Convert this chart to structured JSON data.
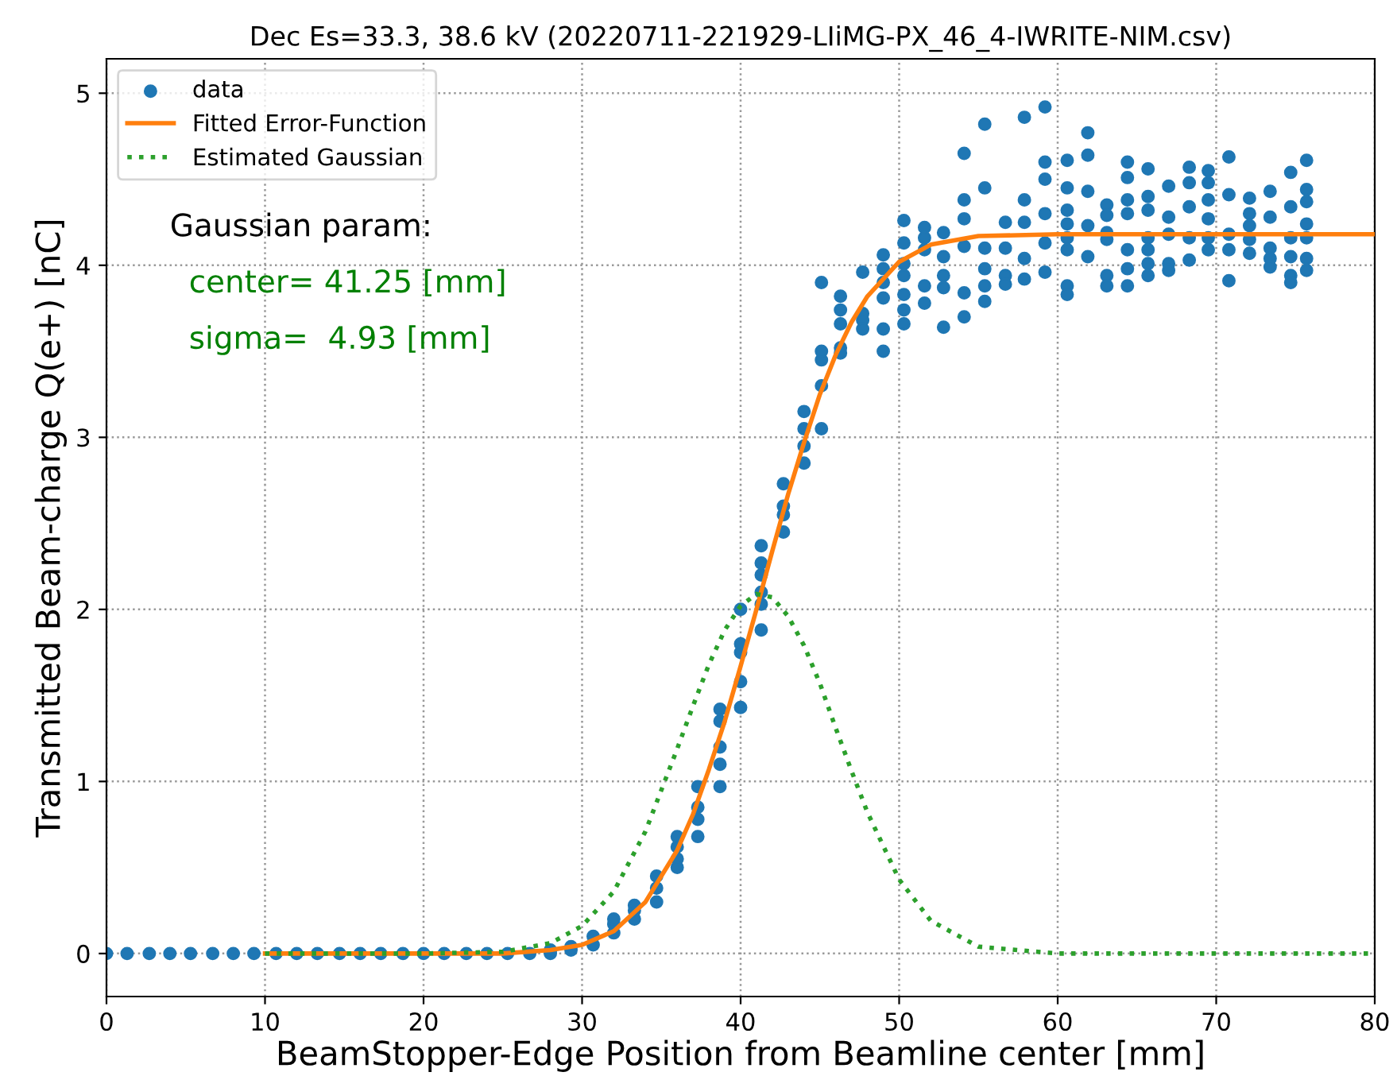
{
  "chart_data": {
    "type": "scatter",
    "title": "Dec Es=33.3, 38.6 kV (20220711-221929-LIiMG-PX_46_4-IWRITE-NIM.csv)",
    "xlabel": "BeamStopper-Edge Position from Beamline center [mm]",
    "ylabel": "Transmitted Beam-charge Q(e+) [nC]",
    "annotations": [
      "Gaussian param:",
      "center= 41.25 [mm]",
      "sigma=  4.93 [mm]"
    ],
    "xlim": [
      0,
      80
    ],
    "xticks": [
      0,
      10,
      20,
      30,
      40,
      50,
      60,
      70,
      80
    ],
    "ylim": [
      -0.25,
      5.2
    ],
    "yticks": [
      0,
      1,
      2,
      3,
      4,
      5
    ],
    "grid": true,
    "legend": "top left",
    "series": [
      {
        "name": "data",
        "type": "scatter",
        "marker": "circle",
        "color": "#1f77b4",
        "x": [
          0,
          1.3,
          2.7,
          4.0,
          5.3,
          6.7,
          8.0,
          9.3,
          10.7,
          12.0,
          13.3,
          14.7,
          16.0,
          17.3,
          18.7,
          20.0,
          21.3,
          22.7,
          24.0,
          25.3,
          26.7,
          28.0,
          28.0,
          29.3,
          29.3,
          30.7,
          30.7,
          32.0,
          32.0,
          32.0,
          33.3,
          33.3,
          33.3,
          34.7,
          34.7,
          34.7,
          36.0,
          36.0,
          36.0,
          36.0,
          37.3,
          37.3,
          37.3,
          37.3,
          38.7,
          38.7,
          38.7,
          38.7,
          38.7,
          40.0,
          40.0,
          40.0,
          40.0,
          40.0,
          41.3,
          41.3,
          41.3,
          41.3,
          41.3,
          41.3,
          42.7,
          42.7,
          42.7,
          42.7,
          44.0,
          44.0,
          44.0,
          44.0,
          45.1,
          45.1,
          45.1,
          45.1,
          45.1,
          46.3,
          46.3,
          46.3,
          46.3,
          46.3,
          47.7,
          47.7,
          47.7,
          47.7,
          49.0,
          49.0,
          49.0,
          49.0,
          49.0,
          49.0,
          50.3,
          50.3,
          50.3,
          50.3,
          50.3,
          50.3,
          50.3,
          51.6,
          51.6,
          51.6,
          51.6,
          51.6,
          52.8,
          52.8,
          52.8,
          52.8,
          52.8,
          54.1,
          54.1,
          54.1,
          54.1,
          54.1,
          54.1,
          55.4,
          55.4,
          55.4,
          55.4,
          55.4,
          55.4,
          56.7,
          56.7,
          56.7,
          56.7,
          57.9,
          57.9,
          57.9,
          57.9,
          57.9,
          59.2,
          59.2,
          59.2,
          59.2,
          59.2,
          59.2,
          60.6,
          60.6,
          60.6,
          60.6,
          60.6,
          60.6,
          60.6,
          60.6,
          61.9,
          61.9,
          61.9,
          61.9,
          61.9,
          63.1,
          63.1,
          63.1,
          63.1,
          63.1,
          63.1,
          64.4,
          64.4,
          64.4,
          64.4,
          64.4,
          64.4,
          64.4,
          65.7,
          65.7,
          65.7,
          65.7,
          65.7,
          65.7,
          65.7,
          67.0,
          67.0,
          67.0,
          67.0,
          67.0,
          68.3,
          68.3,
          68.3,
          68.3,
          68.3,
          69.5,
          69.5,
          69.5,
          69.5,
          69.5,
          69.5,
          70.8,
          70.8,
          70.8,
          70.8,
          70.8,
          72.1,
          72.1,
          72.1,
          72.1,
          72.1,
          73.4,
          73.4,
          73.4,
          73.4,
          73.4,
          74.7,
          74.7,
          74.7,
          74.7,
          74.7,
          74.7,
          75.7,
          75.7,
          75.7,
          75.7,
          75.7,
          75.7,
          75.7
        ],
        "values": [
          0,
          0,
          0,
          0,
          0,
          0,
          0,
          0,
          0,
          0,
          0,
          0,
          0,
          0,
          0,
          0,
          0,
          0,
          0,
          0,
          0,
          0,
          0.02,
          0.02,
          0.04,
          0.05,
          0.1,
          0.12,
          0.17,
          0.2,
          0.2,
          0.25,
          0.28,
          0.3,
          0.38,
          0.45,
          0.5,
          0.55,
          0.62,
          0.68,
          0.68,
          0.78,
          0.85,
          0.97,
          0.97,
          1.1,
          1.2,
          1.35,
          1.42,
          1.43,
          1.58,
          1.75,
          1.8,
          2.0,
          1.88,
          2.03,
          2.1,
          2.2,
          2.27,
          2.37,
          2.45,
          2.55,
          2.6,
          2.73,
          2.85,
          2.95,
          3.05,
          3.15,
          3.05,
          3.3,
          3.45,
          3.5,
          3.9,
          3.82,
          3.74,
          3.66,
          3.52,
          3.49,
          3.96,
          3.72,
          3.68,
          3.63,
          4.06,
          3.98,
          3.9,
          3.81,
          3.63,
          3.5,
          4.26,
          4.13,
          4.01,
          3.94,
          3.83,
          3.74,
          3.66,
          4.22,
          4.16,
          4.09,
          3.88,
          3.78,
          4.19,
          4.05,
          3.94,
          3.87,
          3.64,
          4.65,
          4.38,
          4.27,
          4.11,
          3.84,
          3.7,
          4.82,
          4.45,
          4.1,
          3.98,
          3.88,
          3.79,
          4.25,
          4.1,
          3.94,
          3.89,
          4.86,
          4.38,
          4.25,
          4.04,
          3.92,
          4.92,
          4.6,
          4.5,
          4.3,
          4.13,
          3.96,
          4.61,
          4.45,
          4.32,
          4.24,
          4.16,
          4.09,
          3.88,
          3.83,
          4.77,
          4.64,
          4.43,
          4.23,
          4.05,
          4.35,
          4.29,
          4.19,
          4.15,
          3.94,
          3.88,
          4.6,
          4.51,
          4.38,
          4.3,
          4.09,
          3.98,
          3.88,
          4.56,
          4.4,
          4.32,
          4.16,
          4.09,
          4.01,
          3.94,
          4.46,
          4.28,
          4.18,
          4.01,
          3.97,
          4.57,
          4.48,
          4.34,
          4.16,
          4.03,
          4.55,
          4.48,
          4.38,
          4.27,
          4.16,
          4.09,
          4.63,
          4.41,
          4.18,
          4.09,
          3.91,
          4.39,
          4.3,
          4.23,
          4.15,
          4.07,
          4.43,
          4.28,
          4.1,
          4.04,
          3.99,
          4.54,
          4.34,
          4.16,
          4.05,
          3.94,
          3.9,
          4.61,
          4.44,
          4.37,
          4.24,
          4.16,
          4.04,
          3.97
        ]
      },
      {
        "name": "Fitted Error-Function",
        "type": "line",
        "line_style": "solid",
        "color": "#ff7f0e",
        "x": [
          10,
          20,
          25,
          28,
          30,
          32,
          34,
          36,
          37,
          38,
          39,
          40,
          41,
          42,
          43,
          44,
          45,
          46,
          47,
          48,
          50,
          52,
          55,
          60,
          65,
          70,
          80
        ],
        "values": [
          0,
          0,
          0,
          0.02,
          0.05,
          0.13,
          0.3,
          0.6,
          0.81,
          1.07,
          1.35,
          1.67,
          2.0,
          2.34,
          2.67,
          2.97,
          3.25,
          3.48,
          3.67,
          3.82,
          4.02,
          4.12,
          4.17,
          4.18,
          4.18,
          4.18,
          4.18
        ]
      },
      {
        "name": "Estimated Gaussian",
        "type": "line",
        "line_style": "dotted",
        "color": "#2ca02c",
        "x": [
          10,
          20,
          25,
          28,
          30,
          32,
          34,
          36,
          37,
          38,
          39,
          40,
          41,
          42,
          43,
          44,
          45,
          46,
          47,
          48,
          50,
          52,
          55,
          60,
          65,
          70,
          80
        ],
        "values": [
          0,
          0,
          0.01,
          0.06,
          0.16,
          0.36,
          0.71,
          1.19,
          1.44,
          1.68,
          1.88,
          2.02,
          2.09,
          2.07,
          1.96,
          1.79,
          1.57,
          1.31,
          1.06,
          0.82,
          0.43,
          0.19,
          0.04,
          0,
          0,
          0,
          0
        ]
      }
    ]
  }
}
